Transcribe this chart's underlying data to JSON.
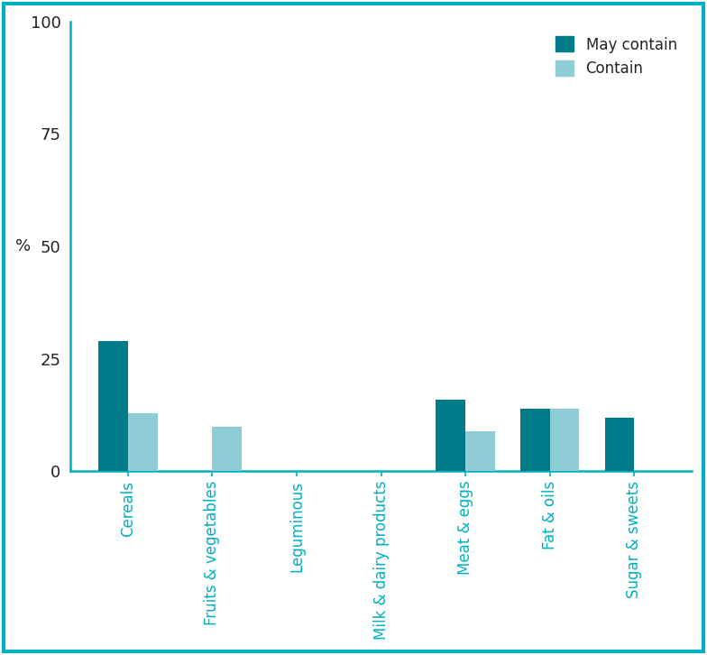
{
  "categories": [
    "Cereals",
    "Fruits & vegetables",
    "Leguminous",
    "Milk & dairy products",
    "Meat & eggs",
    "Fat & oils",
    "Sugar & sweets"
  ],
  "may_contain": [
    29,
    0,
    0,
    0,
    16,
    14,
    12
  ],
  "contain": [
    13,
    10,
    0,
    0,
    9,
    14,
    0
  ],
  "may_contain_color": "#007b8a",
  "contain_color": "#8ecdd5",
  "ylabel": "%",
  "ylim": [
    0,
    100
  ],
  "yticks": [
    0,
    25,
    50,
    75,
    100
  ],
  "legend_may_contain": "May contain",
  "legend_contain": "Contain",
  "border_color": "#00b0c0",
  "bar_width": 0.35,
  "figure_bg": "#ffffff",
  "axes_bg": "#ffffff"
}
